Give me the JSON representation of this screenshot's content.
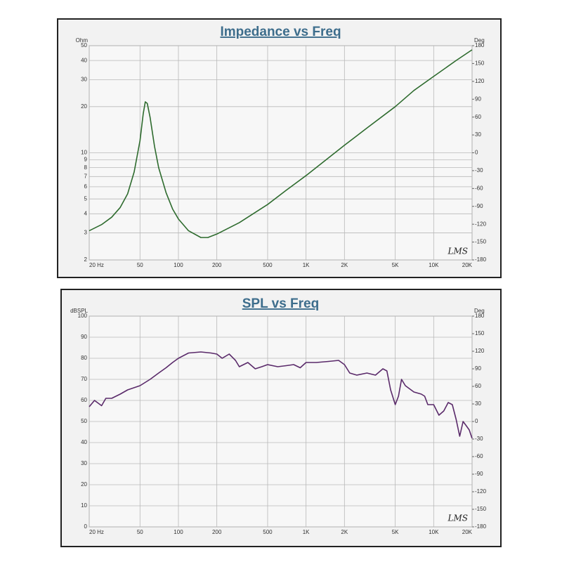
{
  "chart_data": [
    {
      "type": "line",
      "title": "Impedance vs Freq",
      "y_label": "Ohm",
      "y2_label": "Deg",
      "annotation": "LMS",
      "x": [
        20,
        25,
        30,
        35,
        40,
        45,
        50,
        53,
        55,
        57,
        60,
        65,
        70,
        80,
        90,
        100,
        120,
        150,
        170,
        200,
        300,
        500,
        700,
        1000,
        2000,
        3000,
        5000,
        7000,
        10000,
        15000,
        20000
      ],
      "values": [
        3.1,
        3.4,
        3.8,
        4.4,
        5.4,
        7.5,
        12,
        18,
        21.5,
        21,
        17,
        11,
        8,
        5.5,
        4.3,
        3.7,
        3.1,
        2.8,
        2.8,
        2.95,
        3.5,
        4.6,
        5.7,
        7.1,
        11.2,
        14.5,
        20,
        25.5,
        31.5,
        40,
        47
      ],
      "color": "#2e6b2e",
      "xscale": "log",
      "xlim": [
        20,
        20000
      ],
      "xticks": [
        {
          "value": 20,
          "label": "20 Hz"
        },
        50,
        100,
        200,
        500,
        {
          "value": 1000,
          "label": "1K"
        },
        {
          "value": 2000,
          "label": "2K"
        },
        {
          "value": 5000,
          "label": "5K"
        },
        {
          "value": 10000,
          "label": "10K"
        },
        {
          "value": 20000,
          "label": "20K"
        }
      ],
      "yscale": "log",
      "ylim": [
        2,
        50
      ],
      "yticks": [
        2,
        3,
        4,
        5,
        6,
        7,
        8,
        9,
        10,
        20,
        30,
        40,
        50
      ],
      "y2lim": [
        -180,
        180
      ],
      "y2ticks": [
        -180,
        -150,
        -120,
        -90,
        -60,
        -30,
        0,
        30,
        60,
        90,
        120,
        150,
        180
      ],
      "grid": true
    },
    {
      "type": "line",
      "title": "SPL vs Freq",
      "y_label": "dBSPL",
      "y2_label": "Deg",
      "annotation": "LMS",
      "x": [
        20,
        22,
        25,
        27,
        30,
        35,
        40,
        50,
        60,
        70,
        80,
        90,
        100,
        120,
        150,
        180,
        200,
        220,
        250,
        280,
        300,
        350,
        400,
        450,
        500,
        600,
        700,
        800,
        900,
        1000,
        1200,
        1500,
        1800,
        2000,
        2200,
        2500,
        3000,
        3500,
        4000,
        4300,
        4600,
        5000,
        5300,
        5600,
        6000,
        7000,
        8000,
        8500,
        9000,
        10000,
        11000,
        12000,
        13000,
        14000,
        15000,
        16000,
        17000,
        18000,
        19000,
        20000
      ],
      "values": [
        57,
        60,
        57.5,
        61,
        61,
        63,
        65,
        67,
        70,
        73,
        75.5,
        78,
        80,
        82.5,
        83,
        82.5,
        82,
        80,
        82,
        79,
        76,
        78,
        75,
        76,
        77,
        76,
        76.5,
        77,
        75.5,
        78,
        78,
        78.5,
        79,
        77,
        73,
        72,
        73,
        72,
        75,
        74,
        65,
        58,
        62,
        70,
        67,
        64,
        63,
        62,
        58,
        58,
        53,
        55,
        59,
        58,
        51,
        43,
        50,
        48,
        46,
        42
      ],
      "color": "#5a2a6a",
      "xscale": "log",
      "xlim": [
        20,
        20000
      ],
      "xticks": [
        {
          "value": 20,
          "label": "20 Hz"
        },
        50,
        100,
        200,
        500,
        {
          "value": 1000,
          "label": "1K"
        },
        {
          "value": 2000,
          "label": "2K"
        },
        {
          "value": 5000,
          "label": "5K"
        },
        {
          "value": 10000,
          "label": "10K"
        },
        {
          "value": 20000,
          "label": "20K"
        }
      ],
      "yscale": "linear",
      "ylim": [
        0,
        100
      ],
      "yticks": [
        0,
        10,
        20,
        30,
        40,
        50,
        60,
        70,
        80,
        90,
        100
      ],
      "y2lim": [
        -180,
        180
      ],
      "y2ticks": [
        -180,
        -150,
        -120,
        -90,
        -60,
        -30,
        0,
        30,
        60,
        90,
        120,
        150,
        180
      ],
      "grid": true
    }
  ]
}
